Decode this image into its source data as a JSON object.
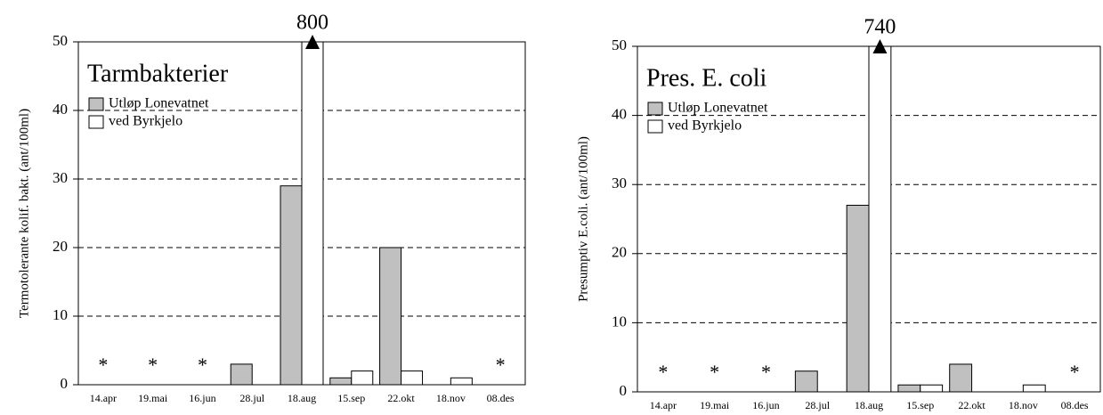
{
  "chart_data": [
    {
      "type": "bar",
      "title": "Tarmbakterier",
      "ylabel": "Termotolerante kolif. bakt. (ant/100ml)",
      "categories": [
        "14.apr",
        "19.mai",
        "16.jun",
        "28.jul",
        "18.aug",
        "15.sep",
        "22.okt",
        "18.nov",
        "08.des"
      ],
      "series": [
        {
          "name": "Utløp Lonevatnet",
          "color": "#c0c0c0",
          "values": [
            null,
            null,
            null,
            3,
            29,
            1,
            20,
            0,
            null
          ]
        },
        {
          "name": "ved Byrkjelo",
          "color": "#ffffff",
          "values": [
            null,
            null,
            null,
            0,
            800,
            2,
            2,
            1,
            null
          ],
          "value_labels": [
            null,
            null,
            null,
            null,
            "800",
            null,
            null,
            null,
            null
          ]
        }
      ],
      "annotations": [
        {
          "text": "*",
          "category": "14.apr"
        },
        {
          "text": "*",
          "category": "19.mai"
        },
        {
          "text": "*",
          "category": "16.jun"
        },
        {
          "text": "*",
          "category": "08.des"
        }
      ],
      "ylim": [
        0,
        50
      ],
      "yticks": [
        0,
        10,
        20,
        30,
        40,
        50
      ],
      "grid": true
    },
    {
      "type": "bar",
      "title": "Pres. E. coli",
      "ylabel": "Presumptiv E.coli. (ant/100ml)",
      "categories": [
        "14.apr",
        "19.mai",
        "16.jun",
        "28.jul",
        "18.aug",
        "15.sep",
        "22.okt",
        "18.nov",
        "08.des"
      ],
      "series": [
        {
          "name": "Utløp Lonevatnet",
          "color": "#c0c0c0",
          "values": [
            null,
            null,
            null,
            3,
            27,
            1,
            4,
            0,
            null
          ]
        },
        {
          "name": "ved Byrkjelo",
          "color": "#ffffff",
          "values": [
            null,
            null,
            null,
            0,
            740,
            1,
            0,
            1,
            null
          ],
          "value_labels": [
            null,
            null,
            null,
            null,
            "740",
            null,
            null,
            null,
            null
          ]
        }
      ],
      "annotations": [
        {
          "text": "*",
          "category": "14.apr"
        },
        {
          "text": "*",
          "category": "19.mai"
        },
        {
          "text": "*",
          "category": "16.jun"
        },
        {
          "text": "*",
          "category": "08.des"
        }
      ],
      "ylim": [
        0,
        50
      ],
      "yticks": [
        0,
        10,
        20,
        30,
        40,
        50
      ],
      "grid": true
    }
  ]
}
